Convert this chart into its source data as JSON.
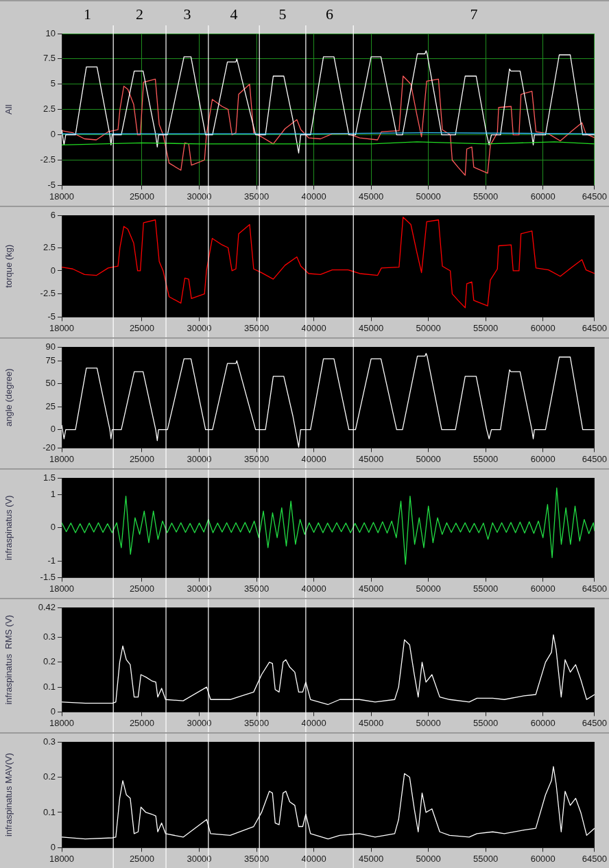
{
  "chart_data": [
    {
      "type": "line",
      "ylabel": "All",
      "xlim": [
        18000,
        64500
      ],
      "xticks": [
        18000,
        25000,
        30000,
        35000,
        40000,
        45000,
        50000,
        55000,
        60000,
        64500
      ],
      "ylim": [
        -5,
        10
      ],
      "yticks": [
        -5,
        -2.5,
        0,
        2.5,
        5,
        7.5,
        10
      ],
      "grid": true,
      "legend": false,
      "annotations": [
        "1",
        "2",
        "3",
        "4",
        "5",
        "6",
        "7"
      ],
      "ref_lines": [
        {
          "axis": "x",
          "value": 22500,
          "color": "#ffffff"
        },
        {
          "axis": "x",
          "value": 27100,
          "color": "#ffffff"
        },
        {
          "axis": "x",
          "value": 30800,
          "color": "#ffffff"
        },
        {
          "axis": "x",
          "value": 35250,
          "color": "#ffffff"
        },
        {
          "axis": "x",
          "value": 39300,
          "color": "#ffffff"
        },
        {
          "axis": "x",
          "value": 43450,
          "color": "#ffffff"
        }
      ],
      "series": [
        {
          "color": "#33ccff",
          "x": [
            18000,
            40000,
            50000,
            64500
          ],
          "values": [
            0.1,
            0.1,
            0.2,
            0.1
          ]
        },
        {
          "color": "#22dd22",
          "x": [
            18000,
            25000,
            30000,
            40000,
            45000,
            49000,
            55000,
            61000,
            64500
          ],
          "values": [
            -1,
            -0.8,
            -0.9,
            -0.9,
            -0.9,
            -0.7,
            -0.9,
            -0.7,
            -0.9
          ]
        },
        {
          "color": "#ffffff",
          "x": [
            18000,
            18200,
            18350,
            19200,
            20150,
            21080,
            22200,
            22300,
            22400,
            23200,
            24330,
            25100,
            26200,
            26340,
            26450,
            27230,
            28670,
            29280,
            30550,
            31160,
            32460,
            33200,
            33280,
            34920,
            35780,
            36460,
            37380,
            38170,
            38680,
            38850,
            39710,
            40840,
            41760,
            43060,
            43640,
            45000,
            45860,
            47230,
            47740,
            49040,
            49700,
            49800,
            49890,
            51160,
            52360,
            53210,
            54170,
            55090,
            55300,
            55500,
            56290,
            57080,
            57200,
            58000,
            59030,
            59150,
            59250,
            60220,
            61420,
            62380,
            63470,
            64500
          ],
          "values": [
            0.5,
            -1,
            0,
            0,
            6.7,
            6.7,
            0,
            -1,
            0,
            0,
            6.3,
            6.3,
            0,
            -1.2,
            0,
            0,
            7.7,
            7.7,
            0,
            0,
            7.2,
            7.2,
            7.5,
            0,
            0,
            5.8,
            5.8,
            1.5,
            -1.8,
            0,
            0,
            7.7,
            7.7,
            0,
            0,
            7.7,
            7.7,
            0,
            0,
            8,
            8,
            8.3,
            8,
            0,
            0,
            5.8,
            5.8,
            0,
            -1,
            0,
            0,
            6.5,
            6.3,
            6.3,
            0,
            -1,
            0,
            0,
            7.9,
            7.9,
            0,
            0
          ]
        },
        {
          "color": "#ff5a5a",
          "x": [
            18000,
            18960,
            19990,
            21020,
            22050,
            22910,
            23080,
            23420,
            23770,
            24280,
            24620,
            24860,
            25140,
            26170,
            26510,
            26850,
            27370,
            28400,
            28740,
            29080,
            29320,
            30460,
            30630,
            31140,
            32000,
            32520,
            32860,
            33200,
            33440,
            34400,
            34750,
            35430,
            36460,
            37490,
            38520,
            38870,
            39550,
            40580,
            41610,
            42980,
            44010,
            45560,
            45900,
            47440,
            47790,
            48470,
            48990,
            49400,
            49850,
            50880,
            51220,
            51910,
            52080,
            52590,
            53210,
            53350,
            53790,
            53960,
            55170,
            55410,
            56020,
            56130,
            57220,
            57400,
            57910,
            58080,
            59040,
            59390,
            60480,
            61510,
            62540,
            63400,
            63750,
            64500
          ],
          "values": [
            0.4,
            0.2,
            -0.4,
            -0.5,
            0.3,
            0.5,
            2.5,
            4.8,
            4.5,
            3,
            0,
            0,
            5.2,
            5.5,
            1,
            0,
            -2.8,
            -3.5,
            -0.8,
            -0.9,
            -3,
            -2.5,
            0,
            3.5,
            2.8,
            2.5,
            0,
            0.2,
            4,
            5,
            0.2,
            -0.2,
            -0.9,
            0.6,
            1.5,
            0.5,
            -0.3,
            -0.4,
            0.1,
            0.1,
            -0.3,
            -0.5,
            0.3,
            0.4,
            5.8,
            5,
            2,
            -0.2,
            5.3,
            5.5,
            0.5,
            0,
            -2.5,
            -3.2,
            -4,
            -1.4,
            -1.2,
            -3.2,
            -3.8,
            -1,
            0.2,
            2.7,
            2.8,
            0,
            0,
            4,
            4.3,
            0.3,
            0.1,
            -0.6,
            0.4,
            1.2,
            0.1,
            -0.3
          ]
        }
      ]
    },
    {
      "type": "line",
      "ylabel": "torque (kg)",
      "xlim": [
        18000,
        64500
      ],
      "xticks": [
        18000,
        25000,
        30000,
        35000,
        40000,
        45000,
        50000,
        55000,
        60000,
        64500
      ],
      "ylim": [
        -5,
        6
      ],
      "yticks": [
        -5,
        -2.5,
        0,
        2.5,
        6
      ],
      "legend": false,
      "ref_lines": [
        {
          "axis": "x",
          "value": 22500,
          "color": "#ffffff"
        },
        {
          "axis": "x",
          "value": 27100,
          "color": "#ffffff"
        },
        {
          "axis": "x",
          "value": 30800,
          "color": "#ffffff"
        },
        {
          "axis": "x",
          "value": 35250,
          "color": "#ffffff"
        },
        {
          "axis": "x",
          "value": 39300,
          "color": "#ffffff"
        },
        {
          "axis": "x",
          "value": 43450,
          "color": "#ffffff"
        }
      ],
      "x": [
        18000,
        18960,
        19990,
        21020,
        22050,
        22910,
        23080,
        23420,
        23770,
        24280,
        24620,
        24860,
        25140,
        26170,
        26510,
        26850,
        27370,
        28400,
        28740,
        29080,
        29320,
        30460,
        30630,
        31140,
        32000,
        32520,
        32860,
        33200,
        33440,
        34400,
        34750,
        35430,
        36460,
        37490,
        38520,
        38870,
        39550,
        40580,
        41610,
        42980,
        44010,
        45560,
        45900,
        47440,
        47790,
        48470,
        48990,
        49400,
        49850,
        50880,
        51220,
        51910,
        52080,
        52590,
        53210,
        53350,
        53790,
        53960,
        55170,
        55410,
        56020,
        56130,
        57220,
        57400,
        57910,
        58080,
        59040,
        59390,
        60480,
        61510,
        62540,
        63400,
        63750,
        64500
      ],
      "series": [
        {
          "color": "#ff0000",
          "values": [
            0.4,
            0.2,
            -0.4,
            -0.5,
            0.3,
            0.5,
            2.5,
            4.8,
            4.5,
            3,
            0,
            0,
            5.2,
            5.5,
            1,
            0,
            -2.8,
            -3.5,
            -0.8,
            -0.9,
            -3,
            -2.5,
            0,
            3.5,
            2.8,
            2.5,
            0,
            0.2,
            4,
            5,
            0.2,
            -0.2,
            -0.9,
            0.6,
            1.5,
            0.5,
            -0.3,
            -0.4,
            0.1,
            0.1,
            -0.3,
            -0.5,
            0.3,
            0.4,
            5.8,
            5,
            2,
            -0.2,
            5.3,
            5.5,
            0.5,
            0,
            -2.5,
            -3.2,
            -4,
            -1.4,
            -1.2,
            -3.2,
            -3.8,
            -1,
            0.2,
            2.7,
            2.8,
            0,
            0,
            4,
            4.3,
            0.3,
            0.1,
            -0.6,
            0.4,
            1.2,
            0.1,
            -0.3
          ]
        }
      ]
    },
    {
      "type": "line",
      "ylabel": "angle (degree)",
      "xlim": [
        18000,
        64500
      ],
      "xticks": [
        18000,
        25000,
        30000,
        35000,
        40000,
        45000,
        50000,
        55000,
        60000,
        64500
      ],
      "ylim": [
        -20,
        90
      ],
      "yticks": [
        -20,
        0,
        25,
        50,
        75,
        90
      ],
      "legend": false,
      "ref_lines": [
        {
          "axis": "x",
          "value": 22500,
          "color": "#ffffff"
        },
        {
          "axis": "x",
          "value": 27100,
          "color": "#ffffff"
        },
        {
          "axis": "x",
          "value": 30800,
          "color": "#ffffff"
        },
        {
          "axis": "x",
          "value": 35250,
          "color": "#ffffff"
        },
        {
          "axis": "x",
          "value": 39300,
          "color": "#ffffff"
        },
        {
          "axis": "x",
          "value": 43450,
          "color": "#ffffff"
        }
      ],
      "x": [
        18000,
        18200,
        18350,
        19200,
        20150,
        21080,
        22200,
        22300,
        22400,
        23200,
        24330,
        25100,
        26200,
        26340,
        26450,
        27230,
        28670,
        29280,
        30550,
        31160,
        32460,
        33200,
        33280,
        34920,
        35780,
        36460,
        37380,
        38170,
        38680,
        38850,
        39710,
        40840,
        41760,
        43060,
        43640,
        45000,
        45860,
        47230,
        47740,
        49040,
        49700,
        49800,
        49890,
        51160,
        52360,
        53210,
        54170,
        55090,
        55300,
        55500,
        56290,
        57080,
        57200,
        58000,
        59030,
        59150,
        59250,
        60220,
        61420,
        62380,
        63470,
        64500
      ],
      "series": [
        {
          "color": "#ffffff",
          "values": [
            5,
            -10,
            0,
            0,
            67,
            67,
            0,
            -10,
            0,
            0,
            63,
            63,
            0,
            -12,
            0,
            0,
            77,
            77,
            0,
            0,
            72,
            72,
            75,
            0,
            0,
            58,
            58,
            15,
            -19,
            0,
            0,
            77,
            77,
            0,
            0,
            77,
            77,
            0,
            0,
            80,
            80,
            83,
            80,
            0,
            0,
            58,
            58,
            0,
            -10,
            0,
            0,
            65,
            63,
            63,
            0,
            -10,
            0,
            0,
            79,
            79,
            0,
            0
          ]
        }
      ]
    },
    {
      "type": "line",
      "ylabel": "infraspinatus (V)",
      "xlim": [
        18000,
        64500
      ],
      "xticks": [
        18000,
        25000,
        30000,
        35000,
        40000,
        45000,
        50000,
        55000,
        60000,
        64500
      ],
      "ylim": [
        -1.5,
        1.5
      ],
      "yticks": [
        -1.5,
        -1,
        0,
        1,
        1.5
      ],
      "legend": false,
      "ref_lines": [
        {
          "axis": "x",
          "value": 22500,
          "color": "#ffffff"
        },
        {
          "axis": "x",
          "value": 27100,
          "color": "#ffffff"
        },
        {
          "axis": "x",
          "value": 30800,
          "color": "#ffffff"
        },
        {
          "axis": "x",
          "value": 35250,
          "color": "#ffffff"
        },
        {
          "axis": "x",
          "value": 39300,
          "color": "#ffffff"
        },
        {
          "axis": "x",
          "value": 43450,
          "color": "#ffffff"
        }
      ],
      "x": [
        18000,
        18400,
        18800,
        19200,
        19600,
        20000,
        20400,
        20800,
        21200,
        21600,
        22000,
        22400,
        22800,
        23200,
        23600,
        24000,
        24400,
        24800,
        25200,
        25600,
        26000,
        26400,
        26800,
        27200,
        27600,
        28000,
        28400,
        28800,
        29200,
        29600,
        30000,
        30400,
        30800,
        31200,
        31600,
        32000,
        32400,
        32800,
        33200,
        33600,
        34000,
        34400,
        34800,
        35200,
        35600,
        36000,
        36400,
        36800,
        37200,
        37600,
        38000,
        38400,
        38800,
        39200,
        39600,
        40000,
        40400,
        40800,
        41200,
        41600,
        42000,
        42400,
        42800,
        43200,
        43600,
        44000,
        44400,
        44800,
        45200,
        45600,
        46000,
        46400,
        46800,
        47200,
        47600,
        48000,
        48400,
        48800,
        49200,
        49600,
        50000,
        50400,
        50800,
        51200,
        51600,
        52000,
        52400,
        52800,
        53200,
        53600,
        54000,
        54400,
        54800,
        55200,
        55600,
        56000,
        56400,
        56800,
        57200,
        57600,
        58000,
        58400,
        58800,
        59200,
        59600,
        60000,
        60400,
        60800,
        61200,
        61600,
        62000,
        62400,
        62800,
        63200,
        63600,
        64000,
        64400,
        64500
      ],
      "series": [
        {
          "color": "#22dd44",
          "values": [
            0.15,
            -0.12,
            0.14,
            -0.15,
            0.12,
            -0.15,
            0.14,
            -0.13,
            0.15,
            -0.14,
            0.12,
            -0.15,
            0.15,
            -0.6,
            0.95,
            -0.8,
            0.3,
            -0.2,
            0.5,
            -0.45,
            0.5,
            -0.35,
            0.2,
            -0.15,
            0.14,
            -0.13,
            0.15,
            -0.14,
            0.13,
            -0.15,
            0.14,
            -0.13,
            0.25,
            -0.15,
            0.14,
            -0.13,
            0.15,
            -0.14,
            0.15,
            -0.13,
            0.16,
            -0.15,
            0.2,
            -0.3,
            0.5,
            -0.6,
            0.45,
            -0.3,
            0.6,
            -0.55,
            0.8,
            -0.5,
            0.25,
            -0.2,
            0.15,
            -0.14,
            0.15,
            -0.15,
            0.14,
            -0.13,
            0.15,
            -0.12,
            0.14,
            -0.15,
            0.13,
            -0.14,
            0.15,
            -0.14,
            0.16,
            -0.15,
            0.18,
            -0.16,
            0.2,
            -0.3,
            0.8,
            -1.1,
            0.95,
            -0.5,
            0.3,
            -0.6,
            0.65,
            -0.45,
            0.3,
            -0.2,
            0.15,
            -0.14,
            0.14,
            -0.13,
            0.15,
            -0.14,
            0.13,
            -0.15,
            0.14,
            -0.35,
            0.15,
            -0.14,
            0.15,
            -0.14,
            0.16,
            -0.15,
            0.17,
            -0.16,
            0.18,
            -0.17,
            0.2,
            -0.3,
            0.7,
            -0.9,
            1.2,
            -0.5,
            0.6,
            -0.5,
            0.65,
            -0.4,
            0.25,
            -0.18,
            0.15,
            -0.1
          ]
        }
      ]
    },
    {
      "type": "line",
      "ylabel": "infraspinatus  RMS (V)",
      "xlim": [
        18000,
        64500
      ],
      "xticks": [
        18000,
        25000,
        30000,
        35000,
        40000,
        45000,
        50000,
        55000,
        60000,
        64500
      ],
      "ylim": [
        0,
        0.42
      ],
      "yticks": [
        0,
        0.1,
        0.2,
        0.3,
        0.42
      ],
      "legend": false,
      "ref_lines": [
        {
          "axis": "x",
          "value": 22500,
          "color": "#ffffff"
        },
        {
          "axis": "x",
          "value": 27100,
          "color": "#ffffff"
        },
        {
          "axis": "x",
          "value": 30800,
          "color": "#ffffff"
        },
        {
          "axis": "x",
          "value": 35250,
          "color": "#ffffff"
        },
        {
          "axis": "x",
          "value": 39300,
          "color": "#ffffff"
        },
        {
          "axis": "x",
          "value": 43450,
          "color": "#ffffff"
        }
      ],
      "x": [
        18000,
        20050,
        22440,
        22720,
        23060,
        23330,
        23640,
        23980,
        24320,
        24670,
        24910,
        25350,
        25860,
        26210,
        26380,
        26720,
        27060,
        28600,
        30650,
        30990,
        32700,
        34750,
        35440,
        36120,
        36390,
        36630,
        36970,
        37320,
        37560,
        37900,
        38340,
        38680,
        39030,
        39300,
        39710,
        41250,
        42270,
        43980,
        45350,
        47060,
        47400,
        47910,
        48360,
        48770,
        49110,
        49450,
        49790,
        50310,
        50990,
        51850,
        53560,
        54240,
        55610,
        56630,
        58340,
        59370,
        60220,
        60740,
        60910,
        61150,
        61590,
        61930,
        62380,
        62850,
        63300,
        63810,
        64500
      ],
      "series": [
        {
          "color": "#ffffff",
          "values": [
            0.04,
            0.035,
            0.035,
            0.04,
            0.2,
            0.265,
            0.21,
            0.19,
            0.06,
            0.06,
            0.15,
            0.14,
            0.125,
            0.12,
            0.06,
            0.095,
            0.05,
            0.045,
            0.1,
            0.05,
            0.05,
            0.08,
            0.15,
            0.2,
            0.195,
            0.09,
            0.08,
            0.2,
            0.21,
            0.18,
            0.16,
            0.08,
            0.08,
            0.12,
            0.05,
            0.03,
            0.05,
            0.05,
            0.04,
            0.05,
            0.1,
            0.29,
            0.27,
            0.15,
            0.06,
            0.2,
            0.12,
            0.15,
            0.06,
            0.05,
            0.04,
            0.055,
            0.055,
            0.05,
            0.065,
            0.07,
            0.2,
            0.24,
            0.31,
            0.25,
            0.06,
            0.21,
            0.16,
            0.19,
            0.13,
            0.05,
            0.07
          ]
        }
      ]
    },
    {
      "type": "line",
      "ylabel": "infraspinatus MAV(V)",
      "xlim": [
        18000,
        64500
      ],
      "xticks": [
        18000,
        25000,
        30000,
        35000,
        40000,
        45000,
        50000,
        55000,
        60000,
        64500
      ],
      "ylim": [
        0,
        0.3
      ],
      "yticks": [
        0,
        0.1,
        0.2,
        0.3
      ],
      "legend": false,
      "ref_lines": [
        {
          "axis": "x",
          "value": 22500,
          "color": "#ffffff"
        },
        {
          "axis": "x",
          "value": 27100,
          "color": "#ffffff"
        },
        {
          "axis": "x",
          "value": 30800,
          "color": "#ffffff"
        },
        {
          "axis": "x",
          "value": 35250,
          "color": "#ffffff"
        },
        {
          "axis": "x",
          "value": 39300,
          "color": "#ffffff"
        },
        {
          "axis": "x",
          "value": 43450,
          "color": "#ffffff"
        }
      ],
      "x": [
        18000,
        20050,
        22440,
        22720,
        23060,
        23330,
        23640,
        23980,
        24320,
        24670,
        24910,
        25350,
        25860,
        26210,
        26380,
        26720,
        27060,
        28600,
        30650,
        30990,
        32700,
        34750,
        35440,
        36120,
        36390,
        36630,
        36970,
        37320,
        37560,
        37900,
        38340,
        38680,
        39030,
        39300,
        39710,
        41250,
        42270,
        43980,
        45350,
        47060,
        47400,
        47910,
        48360,
        48770,
        49110,
        49450,
        49790,
        50310,
        50990,
        51850,
        53560,
        54240,
        55610,
        56630,
        58340,
        59370,
        60220,
        60740,
        60910,
        61150,
        61590,
        61930,
        62380,
        62850,
        63300,
        63810,
        64500
      ],
      "series": [
        {
          "color": "#ffffff",
          "values": [
            0.03,
            0.025,
            0.028,
            0.03,
            0.14,
            0.19,
            0.15,
            0.14,
            0.04,
            0.045,
            0.115,
            0.1,
            0.095,
            0.09,
            0.045,
            0.07,
            0.04,
            0.03,
            0.08,
            0.04,
            0.035,
            0.06,
            0.1,
            0.16,
            0.155,
            0.07,
            0.065,
            0.155,
            0.16,
            0.13,
            0.12,
            0.06,
            0.06,
            0.095,
            0.04,
            0.025,
            0.035,
            0.04,
            0.03,
            0.04,
            0.08,
            0.21,
            0.2,
            0.11,
            0.045,
            0.155,
            0.1,
            0.11,
            0.045,
            0.035,
            0.03,
            0.04,
            0.045,
            0.04,
            0.05,
            0.055,
            0.15,
            0.19,
            0.23,
            0.18,
            0.045,
            0.16,
            0.12,
            0.14,
            0.1,
            0.035,
            0.055
          ]
        }
      ]
    }
  ]
}
